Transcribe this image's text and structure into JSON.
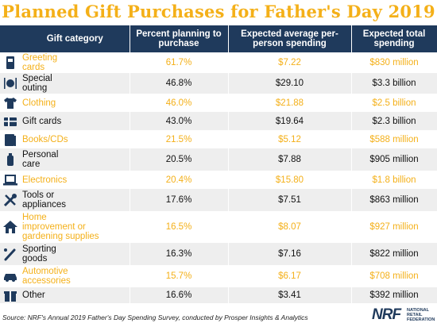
{
  "title": "Planned Gift Purchases for Father's Day 2019",
  "colors": {
    "accent": "#f4b019",
    "header_bg": "#1f3a5c",
    "row_alt": "#eeeeee"
  },
  "chart_data": {
    "type": "table",
    "columns": [
      "Gift category",
      "Percent planning to purchase",
      "Expected average per-person spending",
      "Expected total spending"
    ],
    "rows": [
      {
        "icon": "card-icon",
        "category": "Greeting cards",
        "lines": [
          "Greeting",
          "cards"
        ],
        "percent": "61.7%",
        "avg": "$7.22",
        "total": "$830 million"
      },
      {
        "icon": "dining-icon",
        "category": "Special outing",
        "lines": [
          "Special",
          "outing"
        ],
        "percent": "46.8%",
        "avg": "$29.10",
        "total": "$3.3 billion"
      },
      {
        "icon": "shirt-icon",
        "category": "Clothing",
        "lines": [
          "Clothing"
        ],
        "percent": "46.0%",
        "avg": "$21.88",
        "total": "$2.5 billion"
      },
      {
        "icon": "gift-card-icon",
        "category": "Gift cards",
        "lines": [
          "Gift cards"
        ],
        "percent": "43.0%",
        "avg": "$19.64",
        "total": "$2.3 billion"
      },
      {
        "icon": "book-icon",
        "category": "Books/CDs",
        "lines": [
          "Books/CDs"
        ],
        "percent": "21.5%",
        "avg": "$5.12",
        "total": "$588 million"
      },
      {
        "icon": "bottle-icon",
        "category": "Personal care",
        "lines": [
          "Personal",
          "care"
        ],
        "percent": "20.5%",
        "avg": "$7.88",
        "total": "$905 million"
      },
      {
        "icon": "laptop-icon",
        "category": "Electronics",
        "lines": [
          "Electronics"
        ],
        "percent": "20.4%",
        "avg": "$15.80",
        "total": "$1.8 billion"
      },
      {
        "icon": "tools-icon",
        "category": "Tools or appliances",
        "lines": [
          "Tools or",
          "appliances"
        ],
        "percent": "17.6%",
        "avg": "$7.51",
        "total": "$863 million"
      },
      {
        "icon": "house-icon",
        "category": "Home improvement or gardening supplies",
        "lines": [
          "Home",
          "improvement or",
          "gardening supplies"
        ],
        "percent": "16.5%",
        "avg": "$8.07",
        "total": "$927 million"
      },
      {
        "icon": "bat-icon",
        "category": "Sporting goods",
        "lines": [
          "Sporting",
          "goods"
        ],
        "percent": "16.3%",
        "avg": "$7.16",
        "total": "$822 million"
      },
      {
        "icon": "car-icon",
        "category": "Automotive accessories",
        "lines": [
          "Automotive",
          "accessories"
        ],
        "percent": "15.7%",
        "avg": "$6.17",
        "total": "$708 million"
      },
      {
        "icon": "gift-box-icon",
        "category": "Other",
        "lines": [
          "Other"
        ],
        "percent": "16.6%",
        "avg": "$3.41",
        "total": "$392 million"
      }
    ]
  },
  "source": "Source: NRF's Annual 2019 Father's Day Spending Survey, conducted by Prosper Insights & Analytics",
  "logo": {
    "mark": "NRF",
    "lines": [
      "NATIONAL",
      "RETAIL",
      "FEDERATION"
    ]
  }
}
